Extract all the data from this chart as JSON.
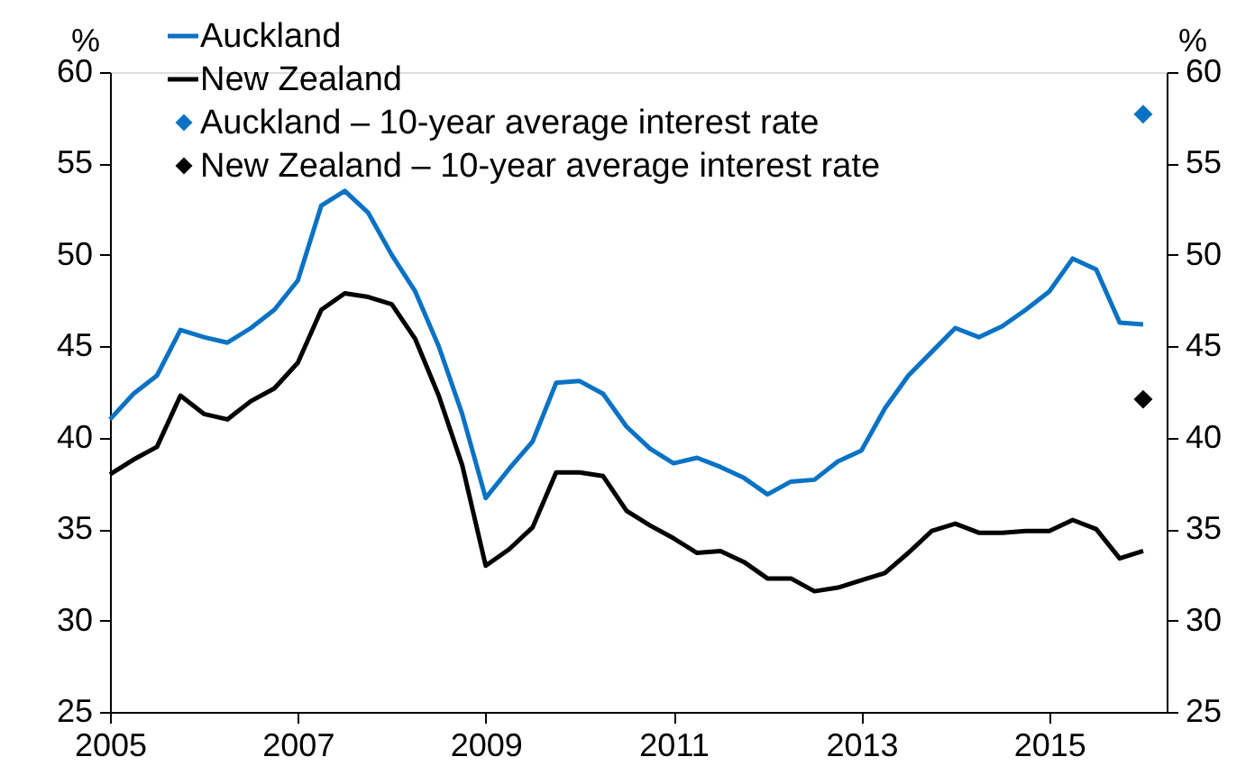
{
  "chart_data": {
    "type": "line",
    "ylabel": "%",
    "y2label": "%",
    "x": [
      2005.0,
      2005.25,
      2005.5,
      2005.75,
      2006.0,
      2006.25,
      2006.5,
      2006.75,
      2007.0,
      2007.25,
      2007.5,
      2007.75,
      2008.0,
      2008.25,
      2008.5,
      2008.75,
      2009.0,
      2009.25,
      2009.5,
      2009.75,
      2010.0,
      2010.25,
      2010.5,
      2010.75,
      2011.0,
      2011.25,
      2011.5,
      2011.75,
      2012.0,
      2012.25,
      2012.5,
      2012.75,
      2013.0,
      2013.25,
      2013.5,
      2013.75,
      2014.0,
      2014.25,
      2014.5,
      2014.75,
      2015.0,
      2015.25,
      2015.5,
      2015.75,
      2016.0
    ],
    "series": [
      {
        "name": "Auckland",
        "color": "#0a72c4",
        "values": [
          41.0,
          42.4,
          43.4,
          45.9,
          45.5,
          45.2,
          46.0,
          47.0,
          48.6,
          52.7,
          53.5,
          52.3,
          50.0,
          48.0,
          45.0,
          41.3,
          36.7,
          38.3,
          39.8,
          43.0,
          43.1,
          42.4,
          40.6,
          39.4,
          38.6,
          38.9,
          38.4,
          37.8,
          36.9,
          37.6,
          37.7,
          38.7,
          39.3,
          41.6,
          43.4,
          44.7,
          46.0,
          45.5,
          46.1,
          47.0,
          48.0,
          49.8,
          49.2,
          46.3,
          46.2
        ]
      },
      {
        "name": "New Zealand",
        "color": "#000000",
        "values": [
          38.0,
          38.8,
          39.5,
          42.3,
          41.3,
          41.0,
          42.0,
          42.7,
          44.1,
          47.0,
          47.9,
          47.7,
          47.3,
          45.4,
          42.3,
          38.5,
          33.0,
          33.9,
          35.1,
          38.1,
          38.1,
          37.9,
          36.0,
          35.2,
          34.5,
          33.7,
          33.8,
          33.2,
          32.3,
          32.3,
          31.6,
          31.8,
          32.2,
          32.6,
          33.7,
          34.9,
          35.3,
          34.8,
          34.8,
          34.9,
          34.9,
          35.5,
          35.0,
          33.4,
          33.8
        ]
      },
      {
        "name": "Auckland – 10-year average interest rate",
        "type": "scatter",
        "marker": "diamond",
        "color": "#0a72c4",
        "x": [
          2016.0
        ],
        "values": [
          57.7
        ]
      },
      {
        "name": "New Zealand – 10-year average interest rate",
        "type": "scatter",
        "marker": "diamond",
        "color": "#000000",
        "x": [
          2016.0
        ],
        "values": [
          42.1
        ]
      }
    ],
    "xlim": [
      2005,
      2016.25
    ],
    "xticks": [
      2005,
      2007,
      2009,
      2011,
      2013,
      2015
    ],
    "ylim": [
      25,
      60
    ],
    "yticks": [
      25,
      30,
      35,
      40,
      45,
      50,
      55,
      60
    ],
    "y2lim": [
      25,
      60
    ],
    "y2ticks": [
      25,
      30,
      35,
      40,
      45,
      50,
      55,
      60
    ],
    "grid": false,
    "legend": "top left",
    "line_style": "solid",
    "marker": "none"
  }
}
